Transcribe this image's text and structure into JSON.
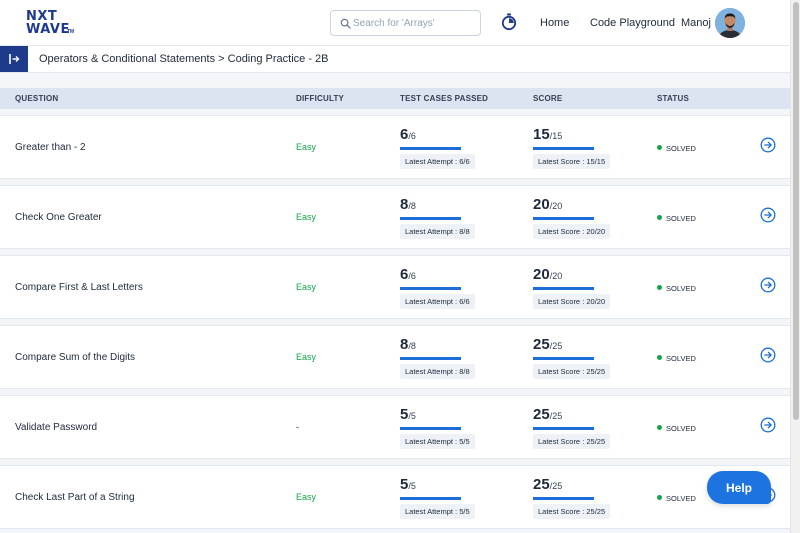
{
  "header": {
    "logo_line1": "NXT",
    "logo_line2": "WAVE",
    "logo_tm": "TM",
    "search_placeholder": "Search for 'Arrays'",
    "nav_home": "Home",
    "nav_playground": "Code Playground",
    "user_name": "Manoj"
  },
  "breadcrumb": "Operators & Conditional Statements > Coding Practice - 2B",
  "table": {
    "columns": {
      "question": "QUESTION",
      "difficulty": "DIFFICULTY",
      "test_cases": "TEST CASES PASSED",
      "score": "SCORE",
      "status": "STATUS"
    },
    "rows": [
      {
        "question": "Greater than - 2",
        "difficulty": "Easy",
        "tc_passed": "6",
        "tc_total": "/6",
        "tc_latest": "Latest Attempt : 6/6",
        "tc_progress": 1.0,
        "score": "15",
        "score_total": "/15",
        "score_latest": "Latest Score : 15/15",
        "score_progress": 1.0,
        "status": "SOLVED"
      },
      {
        "question": "Check One Greater",
        "difficulty": "Easy",
        "tc_passed": "8",
        "tc_total": "/8",
        "tc_latest": "Latest Attempt : 8/8",
        "tc_progress": 1.0,
        "score": "20",
        "score_total": "/20",
        "score_latest": "Latest Score : 20/20",
        "score_progress": 1.0,
        "status": "SOLVED"
      },
      {
        "question": "Compare First & Last Letters",
        "difficulty": "Easy",
        "tc_passed": "6",
        "tc_total": "/6",
        "tc_latest": "Latest Attempt : 6/6",
        "tc_progress": 1.0,
        "score": "20",
        "score_total": "/20",
        "score_latest": "Latest Score : 20/20",
        "score_progress": 1.0,
        "status": "SOLVED"
      },
      {
        "question": "Compare Sum of the Digits",
        "difficulty": "Easy",
        "tc_passed": "8",
        "tc_total": "/8",
        "tc_latest": "Latest Attempt : 8/8",
        "tc_progress": 1.0,
        "score": "25",
        "score_total": "/25",
        "score_latest": "Latest Score : 25/25",
        "score_progress": 1.0,
        "status": "SOLVED"
      },
      {
        "question": "Validate Password",
        "difficulty": "-",
        "tc_passed": "5",
        "tc_total": "/5",
        "tc_latest": "Latest Attempt : 5/5",
        "tc_progress": 1.0,
        "score": "25",
        "score_total": "/25",
        "score_latest": "Latest Score : 25/25",
        "score_progress": 1.0,
        "status": "SOLVED"
      },
      {
        "question": "Check Last Part of a String",
        "difficulty": "Easy",
        "tc_passed": "5",
        "tc_total": "/5",
        "tc_latest": "Latest Attempt : 5/5",
        "tc_progress": 1.0,
        "score": "25",
        "score_total": "/25",
        "score_latest": "Latest Score : 25/25",
        "score_progress": 1.0,
        "status": "SOLVED"
      }
    ]
  },
  "help_label": "Help",
  "colors": {
    "brand": "#1e3a8a",
    "accent": "#1d6fd8",
    "easy": "#16a34a",
    "solved_dot": "#16a34a"
  }
}
